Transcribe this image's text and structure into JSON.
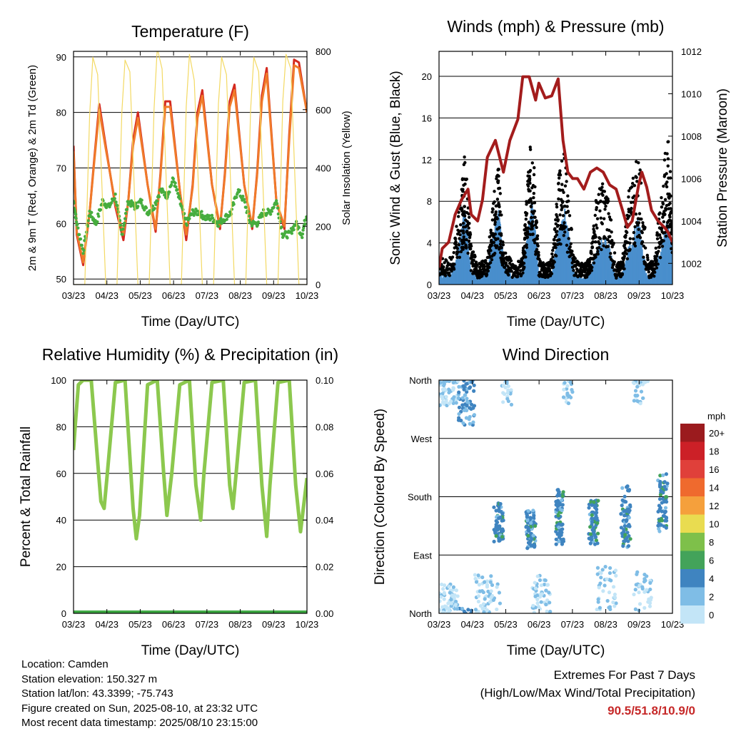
{
  "x_ticks": [
    "03/23",
    "04/23",
    "05/23",
    "06/23",
    "07/23",
    "08/23",
    "09/23",
    "10/23"
  ],
  "info": {
    "location": "Location: Camden",
    "elevation": "Station elevation: 150.327 m",
    "latlon": "Station lat/lon: 43.3399; -75.743",
    "created": "Figure created on Sun, 2025-08-10, at 23:32 UTC",
    "recent": "Most recent data timestamp: 2025/08/10 23:15:00"
  },
  "extremes": {
    "title": "Extremes For Past 7 Days",
    "subtitle": "(High/Low/Max Wind/Total Precipitation)",
    "value": "90.5/51.8/10.9/0",
    "value_color": "#c62828"
  },
  "colorbar": {
    "unit": "mph",
    "labels": [
      "20+",
      "18",
      "16",
      "14",
      "12",
      "10",
      "8",
      "6",
      "4",
      "2",
      "0"
    ],
    "colors": [
      "#9b1b1e",
      "#cc2027",
      "#e0403a",
      "#ef6a2e",
      "#f5a03c",
      "#e9dc50",
      "#7ec04a",
      "#43a35a",
      "#3f84c0",
      "#7fbde6",
      "#c3e5f7"
    ]
  },
  "chart_data": [
    {
      "type": "line",
      "title": "Temperature (F)",
      "xlabel": "Time (Day/UTC)",
      "ylabel": "2m & 9m T (Red, Orange) & 2m Td (Green)",
      "ylabel_right": "Solar Insolation (Yellow)",
      "xlim": [
        0,
        7.25
      ],
      "ylim": [
        49,
        91
      ],
      "y_ticks": [
        50,
        60,
        70,
        80,
        90
      ],
      "ylim_right": [
        0,
        800
      ],
      "y_ticks_right": [
        0,
        200,
        400,
        600,
        800
      ],
      "grid": true,
      "series": [
        {
          "name": "2m T",
          "color": "#d42a1f",
          "x": [
            0,
            0.1,
            0.3,
            0.5,
            0.65,
            0.8,
            1.0,
            1.3,
            1.55,
            1.7,
            1.85,
            2.0,
            2.3,
            2.55,
            2.7,
            2.85,
            3.0,
            3.3,
            3.5,
            3.7,
            3.85,
            4.0,
            4.3,
            4.55,
            4.7,
            4.85,
            5.0,
            5.3,
            5.55,
            5.7,
            5.85,
            6.0,
            6.3,
            6.55,
            6.7,
            6.85,
            7.0,
            7.25
          ],
          "values": [
            74,
            58,
            52.5,
            62,
            72,
            81.5,
            74,
            63,
            57,
            64,
            75,
            80,
            67,
            58.5,
            69,
            82,
            82,
            66,
            57,
            67,
            80,
            84,
            67,
            59,
            69,
            82,
            85,
            67,
            59,
            69,
            83,
            88,
            64,
            59,
            76,
            89.5,
            89,
            80
          ]
        },
        {
          "name": "9m T",
          "color": "#f07a2a",
          "x": [
            0,
            0.1,
            0.3,
            0.5,
            0.65,
            0.8,
            1.0,
            1.3,
            1.55,
            1.7,
            1.85,
            2.0,
            2.3,
            2.55,
            2.7,
            2.85,
            3.0,
            3.3,
            3.5,
            3.7,
            3.85,
            4.0,
            4.3,
            4.55,
            4.7,
            4.85,
            5.0,
            5.3,
            5.55,
            5.7,
            5.85,
            6.0,
            6.3,
            6.55,
            6.7,
            6.85,
            7.0,
            7.25
          ],
          "values": [
            73,
            58.5,
            53,
            62,
            71.5,
            80.5,
            73.5,
            63.5,
            58,
            64,
            74,
            79,
            67,
            59,
            68.5,
            81,
            81,
            66,
            58,
            66.5,
            79,
            83,
            67,
            59.5,
            68.5,
            81,
            84,
            67,
            59.5,
            68.5,
            82,
            87,
            64,
            59.5,
            75,
            88.5,
            88,
            80
          ]
        },
        {
          "name": "2m Td",
          "color": "#46ad3e",
          "x": [
            0,
            0.1,
            0.3,
            0.5,
            0.7,
            0.9,
            1.1,
            1.3,
            1.5,
            1.7,
            1.9,
            2.1,
            2.3,
            2.5,
            2.7,
            2.9,
            3.1,
            3.3,
            3.5,
            3.7,
            3.9,
            4.1,
            4.3,
            4.5,
            4.7,
            4.9,
            5.1,
            5.3,
            5.5,
            5.7,
            5.9,
            6.1,
            6.3,
            6.5,
            6.7,
            6.9,
            7.1,
            7.25
          ],
          "values": [
            64,
            60,
            55,
            62,
            60,
            64,
            63,
            65,
            58,
            64,
            63,
            64,
            62,
            63,
            66,
            65,
            68,
            64,
            60,
            62,
            62,
            61,
            61,
            60,
            61,
            62,
            66,
            64,
            60,
            60,
            62,
            62,
            64,
            58,
            58,
            60,
            58,
            62
          ]
        },
        {
          "name": "Solar",
          "color": "#f3d963",
          "x": [
            0,
            0.35,
            0.5,
            0.6,
            0.75,
            1.0,
            1.35,
            1.5,
            1.6,
            1.75,
            2.0,
            2.35,
            2.5,
            2.6,
            2.75,
            3.0,
            3.35,
            3.5,
            3.6,
            3.75,
            4.0,
            4.35,
            4.5,
            4.6,
            4.75,
            5.0,
            5.35,
            5.5,
            5.6,
            5.75,
            6.0,
            6.35,
            6.5,
            6.6,
            6.75,
            7.0,
            7.25
          ],
          "values": [
            0,
            0,
            580,
            780,
            720,
            0,
            0,
            590,
            770,
            730,
            0,
            0,
            600,
            810,
            740,
            0,
            0,
            610,
            790,
            700,
            0,
            0,
            620,
            780,
            720,
            0,
            0,
            600,
            780,
            730,
            0,
            0,
            630,
            790,
            740,
            0,
            0
          ]
        }
      ]
    },
    {
      "type": "line",
      "title": "Winds (mph) & Pressure (mb)",
      "xlabel": "Time (Day/UTC)",
      "ylabel": "Sonic Wind & Gust (Blue, Black)",
      "ylabel_right": "Station Pressure (Maroon)",
      "xlim": [
        0,
        7.25
      ],
      "ylim": [
        0,
        22.4
      ],
      "y_ticks": [
        0,
        4,
        8,
        12,
        16,
        20
      ],
      "ylim_right": [
        1001,
        1012
      ],
      "y_ticks_right": [
        1002,
        1004,
        1006,
        1008,
        1010,
        1012
      ],
      "grid": true,
      "series": [
        {
          "name": "Sonic Wind",
          "color": "#4a8fcd",
          "x": [
            0,
            0.4,
            0.7,
            0.8,
            1.0,
            1.2,
            1.5,
            1.7,
            1.85,
            2.0,
            2.3,
            2.6,
            2.75,
            2.9,
            3.1,
            3.3,
            3.5,
            3.7,
            3.9,
            4.2,
            4.5,
            4.7,
            4.9,
            5.2,
            5.5,
            5.7,
            5.9,
            6.2,
            6.5,
            6.7,
            6.9,
            7.1,
            7.25
          ],
          "values": [
            1,
            1,
            4,
            6,
            1,
            0.5,
            1,
            4,
            6,
            2,
            0.5,
            1,
            4,
            7,
            1,
            0.5,
            1,
            4,
            6,
            1,
            0.5,
            1,
            3,
            4,
            0.5,
            1,
            3,
            5,
            0.5,
            1,
            3,
            5,
            3
          ]
        },
        {
          "name": "Gust",
          "color": "#000000",
          "x": [
            0,
            0.4,
            0.7,
            0.8,
            1.0,
            1.2,
            1.5,
            1.7,
            1.85,
            2.0,
            2.3,
            2.6,
            2.75,
            2.9,
            3.1,
            3.3,
            3.5,
            3.7,
            3.9,
            4.2,
            4.5,
            4.7,
            4.9,
            5.2,
            5.5,
            5.7,
            5.9,
            6.2,
            6.5,
            6.7,
            6.9,
            7.1,
            7.25
          ],
          "values": [
            2,
            2,
            7,
            10,
            3,
            1.5,
            2,
            7,
            9,
            3,
            1.5,
            2,
            8,
            12,
            2,
            1.5,
            2,
            8,
            10,
            2,
            1.5,
            2,
            7,
            8,
            1.5,
            2,
            7,
            10,
            1.5,
            2,
            7,
            12,
            6
          ]
        },
        {
          "name": "Pressure",
          "color": "#a31c1c",
          "x": [
            0,
            0.1,
            0.3,
            0.5,
            0.7,
            0.9,
            1.0,
            1.2,
            1.35,
            1.5,
            1.75,
            2.0,
            2.2,
            2.45,
            2.6,
            2.8,
            3.0,
            3.1,
            3.3,
            3.5,
            3.7,
            3.85,
            4.0,
            4.15,
            4.3,
            4.5,
            4.7,
            4.9,
            5.1,
            5.3,
            5.5,
            5.7,
            5.85,
            6.0,
            6.2,
            6.3,
            6.45,
            6.6,
            6.8,
            7.0,
            7.1,
            7.25
          ],
          "values": [
            1001.8,
            1002.7,
            1003,
            1004.3,
            1005,
            1005.5,
            1004.3,
            1004,
            1005,
            1007,
            1007.8,
            1006.3,
            1007.8,
            1008.8,
            1010.8,
            1010.8,
            1009.7,
            1010.5,
            1009.8,
            1009.9,
            1010.7,
            1007.8,
            1006.3,
            1006,
            1006,
            1005.5,
            1006.3,
            1006.5,
            1006.3,
            1005.7,
            1005.5,
            1004.5,
            1003.7,
            1004,
            1005.7,
            1006.3,
            1005.6,
            1004.5,
            1004,
            1003.7,
            1003.5,
            1003
          ]
        }
      ]
    },
    {
      "type": "line",
      "title": "Relative Humidity (%) & Precipitation (in)",
      "xlabel": "Time (Day/UTC)",
      "ylabel": "Percent & Total Rainfall",
      "xlim": [
        0,
        7.25
      ],
      "ylim": [
        0,
        100
      ],
      "y_ticks": [
        0,
        20,
        40,
        60,
        80,
        100
      ],
      "ylim_right": [
        0,
        0.1
      ],
      "y_ticks_right": [
        "0.00",
        "0.02",
        "0.04",
        "0.06",
        "0.08",
        "0.10"
      ],
      "grid": true,
      "series": [
        {
          "name": "RH",
          "color": "#8cc84e",
          "x": [
            0,
            0.05,
            0.15,
            0.3,
            0.55,
            0.75,
            0.85,
            0.95,
            1.05,
            1.3,
            1.6,
            1.85,
            1.95,
            2.05,
            2.3,
            2.6,
            2.8,
            2.9,
            3.05,
            3.3,
            3.6,
            3.8,
            3.95,
            4.05,
            4.3,
            4.65,
            4.85,
            4.95,
            5.05,
            5.3,
            5.65,
            5.85,
            6.0,
            6.1,
            6.35,
            6.7,
            6.9,
            7.05,
            7.25
          ],
          "values": [
            70,
            80,
            98,
            100,
            100,
            65,
            48,
            45,
            60,
            99,
            100,
            45,
            32,
            42,
            98,
            100,
            60,
            42,
            60,
            98,
            100,
            55,
            40,
            60,
            99,
            100,
            55,
            45,
            60,
            99,
            100,
            55,
            33,
            55,
            99,
            100,
            55,
            35,
            58
          ]
        },
        {
          "name": "Precipitation",
          "color": "#3ea843",
          "x": [
            0,
            7.25
          ],
          "values": [
            0,
            0
          ]
        }
      ]
    },
    {
      "type": "scatter",
      "title": "Wind Direction",
      "xlabel": "Time (Day/UTC)",
      "ylabel": "Direction (Colored By Speed)",
      "xlim": [
        0,
        7.25
      ],
      "ylim": [
        0,
        360
      ],
      "y_ticks": [
        0,
        90,
        180,
        270,
        360
      ],
      "y_tick_labels": [
        "North",
        "East",
        "South",
        "West",
        "North"
      ],
      "grid": true,
      "clusters": [
        {
          "x": 0.3,
          "y": 345,
          "spread_x": 0.3,
          "spread_y": 25,
          "n": 60,
          "speed": 1
        },
        {
          "x": 0.85,
          "y": 330,
          "spread_x": 0.25,
          "spread_y": 40,
          "n": 70,
          "speed": 3
        },
        {
          "x": 0.3,
          "y": 20,
          "spread_x": 0.3,
          "spread_y": 25,
          "n": 60,
          "speed": 0.5
        },
        {
          "x": 1.85,
          "y": 140,
          "spread_x": 0.15,
          "spread_y": 30,
          "n": 60,
          "speed": 4
        },
        {
          "x": 2.85,
          "y": 130,
          "spread_x": 0.15,
          "spread_y": 30,
          "n": 80,
          "speed": 4
        },
        {
          "x": 3.75,
          "y": 150,
          "spread_x": 0.12,
          "spread_y": 45,
          "n": 70,
          "speed": 4
        },
        {
          "x": 4.8,
          "y": 140,
          "spread_x": 0.15,
          "spread_y": 35,
          "n": 70,
          "speed": 4
        },
        {
          "x": 5.8,
          "y": 150,
          "spread_x": 0.15,
          "spread_y": 50,
          "n": 70,
          "speed": 4
        },
        {
          "x": 6.95,
          "y": 170,
          "spread_x": 0.15,
          "spread_y": 45,
          "n": 60,
          "speed": 4
        },
        {
          "x": 1.5,
          "y": 30,
          "spread_x": 0.4,
          "spread_y": 30,
          "n": 60,
          "speed": 1
        },
        {
          "x": 3.2,
          "y": 30,
          "spread_x": 0.3,
          "spread_y": 30,
          "n": 50,
          "speed": 1
        },
        {
          "x": 5.2,
          "y": 40,
          "spread_x": 0.3,
          "spread_y": 35,
          "n": 40,
          "speed": 1
        },
        {
          "x": 6.3,
          "y": 30,
          "spread_x": 0.3,
          "spread_y": 35,
          "n": 40,
          "speed": 1
        },
        {
          "x": 2.1,
          "y": 340,
          "spread_x": 0.15,
          "spread_y": 20,
          "n": 20,
          "speed": 1
        },
        {
          "x": 4.0,
          "y": 340,
          "spread_x": 0.15,
          "spread_y": 20,
          "n": 20,
          "speed": 1
        },
        {
          "x": 6.2,
          "y": 340,
          "spread_x": 0.15,
          "spread_y": 20,
          "n": 20,
          "speed": 1
        }
      ]
    }
  ]
}
